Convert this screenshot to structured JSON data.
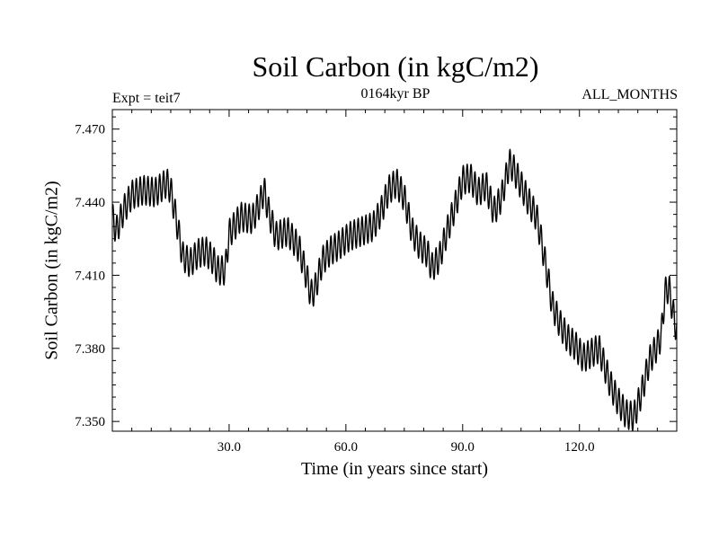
{
  "chart_data": {
    "type": "line",
    "title": "Soil Carbon (in kgC/m2)",
    "subtitle": "0164kyr BP",
    "annotation_left": "Expt = teit7",
    "annotation_right": "ALL_MONTHS",
    "xlabel": "Time (in years since start)",
    "ylabel": "Soil Carbon (in kgC/m2)",
    "xlim": [
      0,
      145
    ],
    "ylim": [
      7.346,
      7.478
    ],
    "xticks": [
      30,
      60,
      90,
      120
    ],
    "xtick_labels": [
      "30.0",
      "60.0",
      "90.0",
      "120.0"
    ],
    "yticks": [
      7.35,
      7.38,
      7.41,
      7.44,
      7.47
    ],
    "ytick_labels": [
      "7.350",
      "7.380",
      "7.410",
      "7.440",
      "7.470"
    ],
    "seasonal_amplitude": 0.006,
    "series": [
      {
        "name": "Soil Carbon",
        "color": "#000000",
        "x": [
          0,
          1,
          3,
          5,
          8,
          11,
          14,
          15,
          17,
          18,
          20,
          22,
          24,
          26,
          27,
          29,
          30,
          33,
          36,
          38,
          39,
          40,
          42,
          45,
          48,
          50,
          51,
          52,
          54,
          56,
          58,
          61,
          64,
          67,
          69,
          71,
          73,
          75,
          77,
          79,
          81,
          82,
          84,
          86,
          88,
          90,
          92,
          94,
          96,
          98,
          100,
          102,
          103,
          105,
          107,
          109,
          110,
          112,
          113,
          115,
          117,
          119,
          121,
          123,
          125,
          126,
          128,
          130,
          132,
          134,
          136,
          138,
          140,
          141,
          142,
          143,
          144,
          145
        ],
        "values": [
          7.434,
          7.428,
          7.437,
          7.443,
          7.445,
          7.444,
          7.448,
          7.445,
          7.428,
          7.418,
          7.415,
          7.419,
          7.42,
          7.416,
          7.412,
          7.412,
          7.427,
          7.434,
          7.433,
          7.44,
          7.445,
          7.437,
          7.426,
          7.428,
          7.421,
          7.409,
          7.402,
          7.404,
          7.416,
          7.42,
          7.422,
          7.426,
          7.428,
          7.43,
          7.436,
          7.445,
          7.448,
          7.442,
          7.428,
          7.422,
          7.419,
          7.413,
          7.417,
          7.428,
          7.438,
          7.449,
          7.45,
          7.444,
          7.447,
          7.436,
          7.442,
          7.456,
          7.454,
          7.447,
          7.44,
          7.434,
          7.426,
          7.408,
          7.398,
          7.39,
          7.384,
          7.381,
          7.376,
          7.378,
          7.38,
          7.375,
          7.365,
          7.358,
          7.353,
          7.352,
          7.362,
          7.375,
          7.381,
          7.385,
          7.403,
          7.405,
          7.395,
          7.387
        ]
      }
    ]
  }
}
